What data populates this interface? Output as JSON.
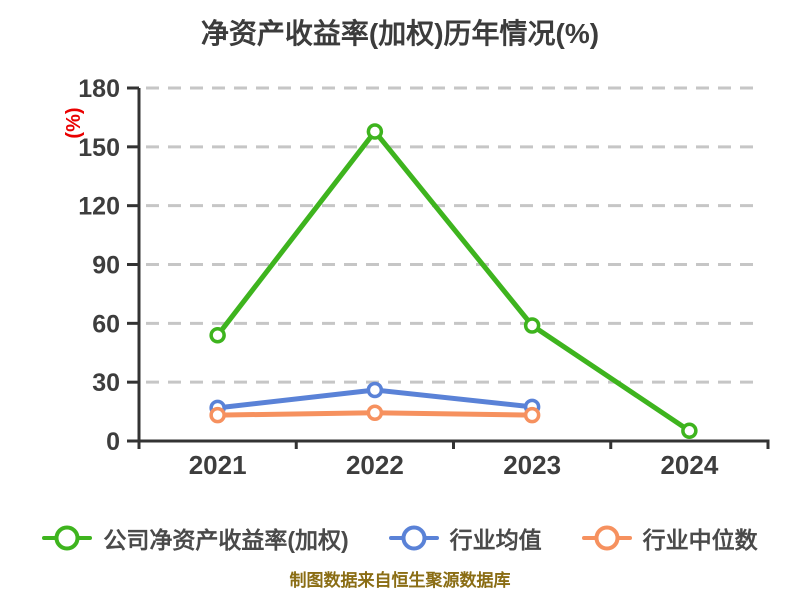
{
  "title": "净资产收益率(加权)历年情况(%)",
  "footer": "制图数据来自恒生聚源数据库",
  "colors": {
    "company_series": "#3eb41e",
    "industry_mean_series": "#5a82d7",
    "industry_median_series": "#f6915f",
    "axis": "#333333",
    "gridline": "#c6c6c6",
    "tick_label": "#3d3d3d",
    "title_text": "#3c3c3c",
    "y_unit_label": "#ea0000",
    "footer_text": "#8a6d14",
    "marker_fill": "#ffffff"
  },
  "chart_data": {
    "type": "line",
    "title": "净资产收益率(加权)历年情况(%)",
    "categories": [
      "2021",
      "2022",
      "2023",
      "2024"
    ],
    "series": [
      {
        "name": "公司净资产收益率(加权)",
        "color": "#3eb41e",
        "values": [
          53.9,
          157.8,
          58.9,
          5.2
        ]
      },
      {
        "name": "行业均值",
        "color": "#5a82d7",
        "values": [
          16.9,
          26.0,
          17.4,
          null
        ]
      },
      {
        "name": "行业中位数",
        "color": "#f6915f",
        "values": [
          13.2,
          14.4,
          13.2,
          null
        ]
      }
    ],
    "xlabel": "",
    "ylabel": "(%)",
    "ylim": [
      0,
      180
    ],
    "ytick_step": 30,
    "yticks": [
      0,
      30,
      60,
      90,
      120,
      150,
      180
    ],
    "grid": "horizontal-dashed",
    "legend_position": "bottom",
    "marker_style": "circle-white-fill"
  }
}
